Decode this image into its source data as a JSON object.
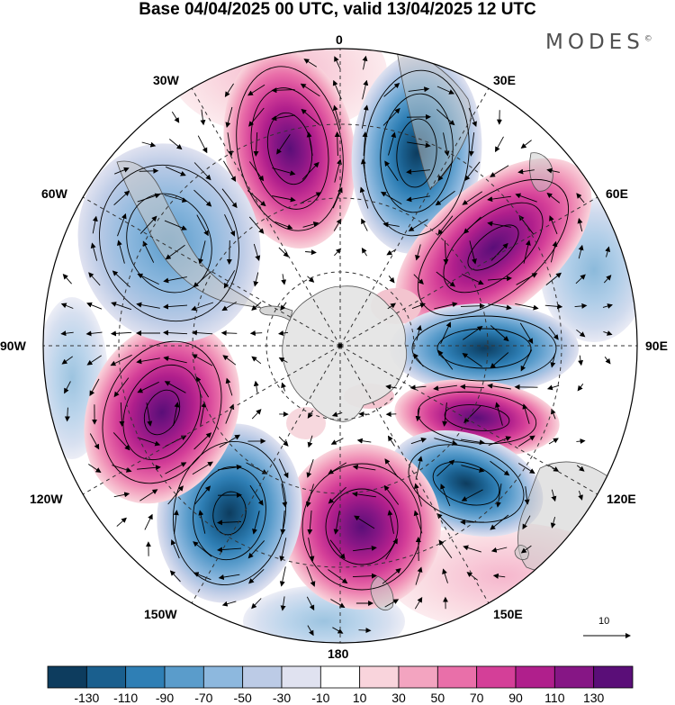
{
  "title": "Base 04/04/2025 00 UTC, valid 13/04/2025 12 UTC",
  "brand": "MODES",
  "brand_mark": "©",
  "lon_labels": {
    "n": "0",
    "ne30": "30E",
    "ne60": "60E",
    "e": "90E",
    "se120": "120E",
    "se150": "150E",
    "s": "180",
    "sw150": "150W",
    "sw120": "120W",
    "w": "90W",
    "nw60": "60W",
    "nw30": "30W"
  },
  "reference_vector": "10",
  "colorbar": {
    "tick_labels": [
      "-130",
      "-110",
      "-90",
      "-70",
      "-50",
      "-30",
      "-10",
      "10",
      "30",
      "50",
      "70",
      "90",
      "110",
      "130"
    ],
    "colors": [
      "#0d3c5e",
      "#1a5f8e",
      "#2f7fb5",
      "#5a9ccb",
      "#8db8de",
      "#bccbe6",
      "#e0e2f0",
      "#ffffff",
      "#f9d4dc",
      "#f3a4c0",
      "#e96fa9",
      "#d43f98",
      "#b01f8c",
      "#861685",
      "#5a0e78"
    ]
  },
  "map_colors": {
    "land": "#d0d0d0",
    "ice": "#e6e6e6"
  }
}
